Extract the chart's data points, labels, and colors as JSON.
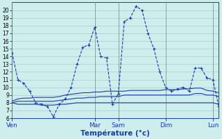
{
  "background_color": "#ceeeed",
  "grid_color": "#aacccc",
  "line_color": "#1a3ab0",
  "xlabel": "Température (°c)",
  "ylim": [
    6,
    21
  ],
  "yticks": [
    6,
    7,
    8,
    9,
    10,
    11,
    12,
    13,
    14,
    15,
    16,
    17,
    18,
    19,
    20
  ],
  "day_labels": [
    "Ven",
    "Mar",
    "Sam",
    "Dim",
    "Lun"
  ],
  "day_x": [
    0,
    14,
    18,
    26,
    34
  ],
  "n_points": 36,
  "series1": [
    14.5,
    11.0,
    10.5,
    9.5,
    8.0,
    7.8,
    7.5,
    6.2,
    7.8,
    8.5,
    10.0,
    13.0,
    15.2,
    15.5,
    17.8,
    14.0,
    13.8,
    7.8,
    9.2,
    18.5,
    19.0,
    20.5,
    20.0,
    17.0,
    15.0,
    12.0,
    10.0,
    9.5,
    9.8,
    10.0,
    9.5,
    12.5,
    12.5,
    11.2,
    11.0,
    7.5
  ],
  "series2": [
    8.0,
    7.8,
    7.8,
    7.8,
    7.8,
    7.7,
    7.7,
    7.7,
    7.8,
    7.8,
    7.9,
    8.0,
    8.0,
    8.0,
    8.0,
    8.0,
    8.0,
    8.0,
    8.0,
    8.0,
    8.0,
    8.0,
    8.0,
    8.0,
    8.0,
    8.0,
    8.0,
    8.0,
    8.0,
    8.0,
    8.0,
    8.0,
    8.0,
    8.0,
    8.0,
    7.8
  ],
  "series3": [
    8.0,
    8.2,
    8.2,
    8.2,
    8.2,
    8.2,
    8.2,
    8.2,
    8.3,
    8.4,
    8.5,
    8.6,
    8.6,
    8.7,
    8.7,
    8.8,
    8.8,
    8.8,
    8.8,
    9.0,
    9.0,
    9.0,
    9.0,
    9.0,
    9.0,
    9.0,
    9.0,
    9.0,
    9.0,
    9.0,
    9.0,
    9.2,
    9.2,
    9.0,
    9.0,
    8.8
  ],
  "series4": [
    8.2,
    8.5,
    8.6,
    8.6,
    8.7,
    8.7,
    8.7,
    8.7,
    8.8,
    9.0,
    9.1,
    9.2,
    9.3,
    9.3,
    9.4,
    9.4,
    9.5,
    9.5,
    9.5,
    9.5,
    9.6,
    9.6,
    9.6,
    9.6,
    9.6,
    9.6,
    9.7,
    9.7,
    9.7,
    9.8,
    9.8,
    9.9,
    9.9,
    9.6,
    9.5,
    9.3
  ]
}
